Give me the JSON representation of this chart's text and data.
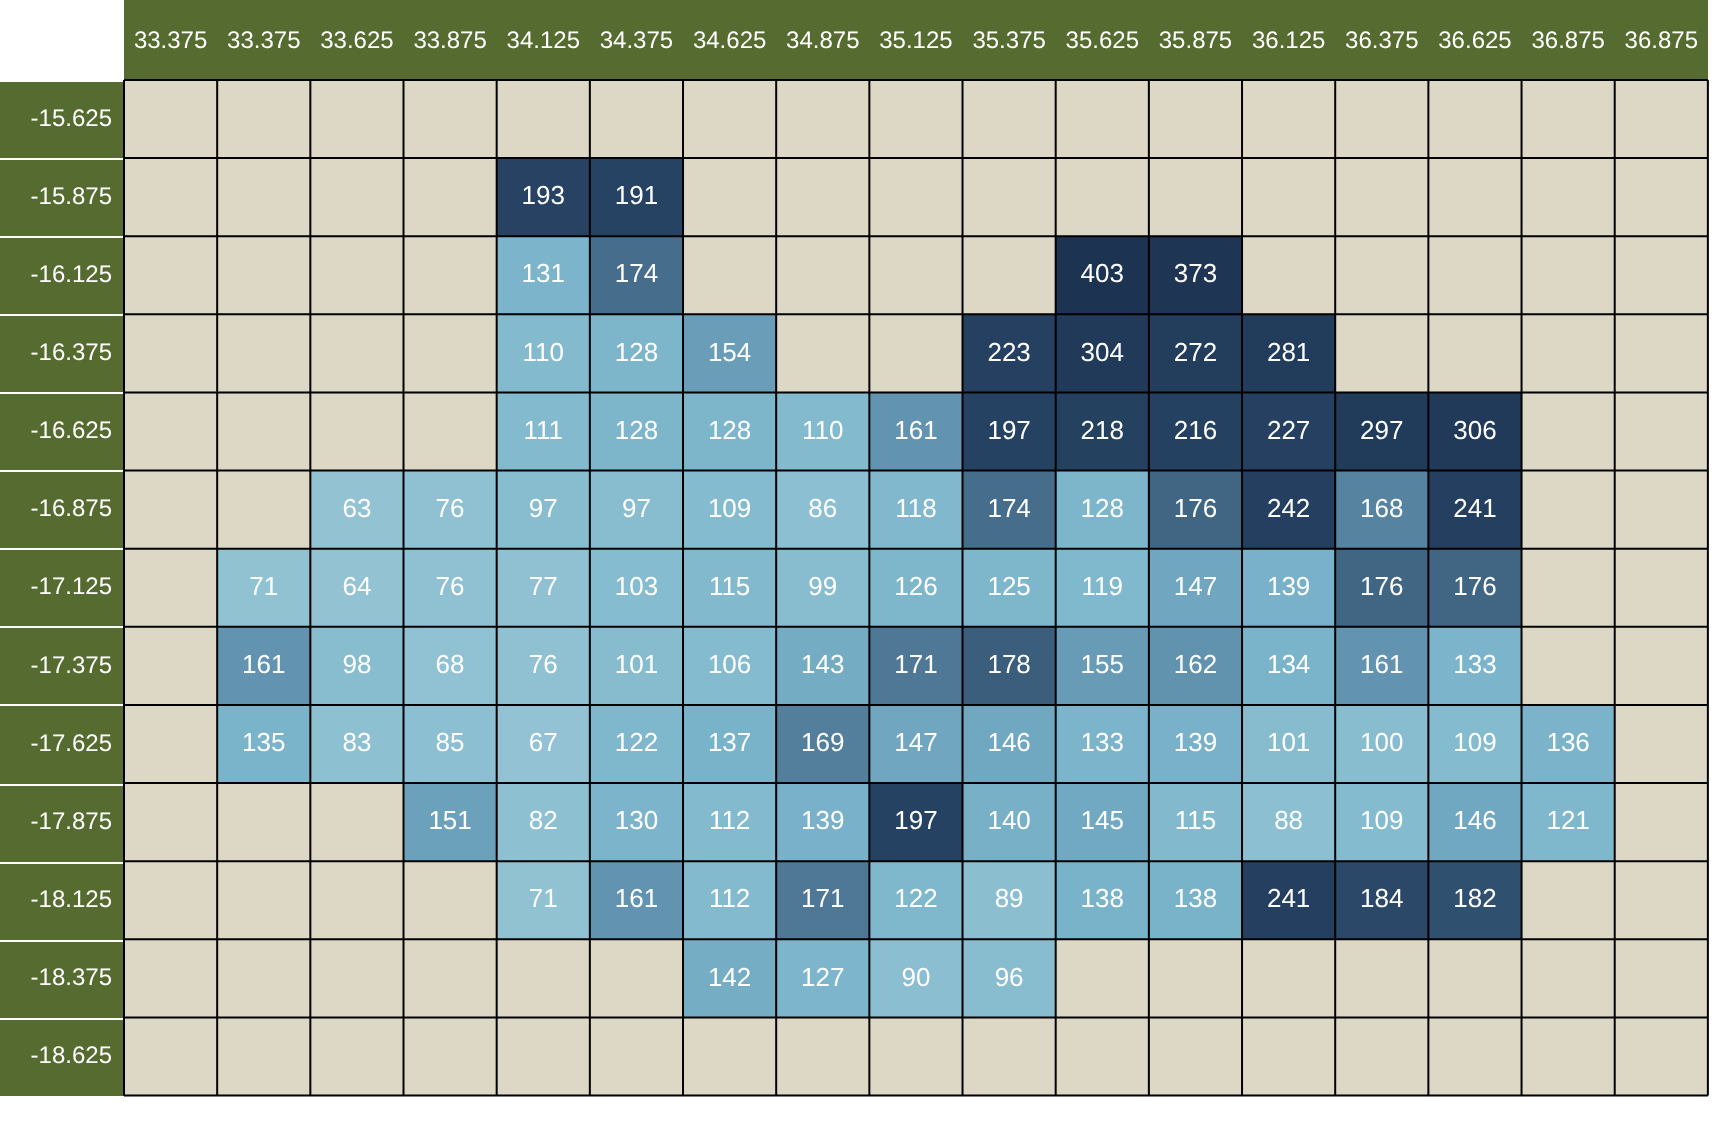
{
  "chart_data": {
    "type": "heatmap",
    "categories": [
      "33.375",
      "33.375",
      "33.625",
      "33.875",
      "34.125",
      "34.375",
      "34.625",
      "34.875",
      "35.125",
      "35.375",
      "35.625",
      "35.875",
      "36.125",
      "36.375",
      "36.625",
      "36.875",
      "36.875"
    ],
    "y_categories": [
      "-15.625",
      "-15.875",
      "-16.125",
      "-16.375",
      "-16.625",
      "-16.875",
      "-17.125",
      "-17.375",
      "-17.625",
      "-17.875",
      "-18.125",
      "-18.375",
      "-18.625"
    ],
    "cells": [
      [
        null,
        null,
        null,
        null,
        null,
        null,
        null,
        null,
        null,
        null,
        null,
        null,
        null,
        null,
        null,
        null,
        null
      ],
      [
        null,
        null,
        null,
        null,
        193,
        191,
        null,
        null,
        null,
        null,
        null,
        null,
        null,
        null,
        null,
        null,
        null
      ],
      [
        null,
        null,
        null,
        null,
        131,
        174,
        null,
        null,
        null,
        null,
        403,
        373,
        null,
        null,
        null,
        null,
        null
      ],
      [
        null,
        null,
        null,
        null,
        110,
        128,
        154,
        null,
        null,
        223,
        304,
        272,
        281,
        null,
        null,
        null,
        null
      ],
      [
        null,
        null,
        null,
        null,
        111,
        128,
        128,
        110,
        161,
        197,
        218,
        216,
        227,
        297,
        306,
        null,
        null
      ],
      [
        null,
        null,
        63,
        76,
        97,
        97,
        109,
        86,
        118,
        174,
        128,
        176,
        242,
        168,
        241,
        null,
        null
      ],
      [
        null,
        71,
        64,
        76,
        77,
        103,
        115,
        99,
        126,
        125,
        119,
        147,
        139,
        176,
        176,
        null,
        null
      ],
      [
        null,
        161,
        98,
        68,
        76,
        101,
        106,
        143,
        171,
        178,
        155,
        162,
        134,
        161,
        133,
        null,
        null
      ],
      [
        null,
        135,
        83,
        85,
        67,
        122,
        137,
        169,
        147,
        146,
        133,
        139,
        101,
        100,
        109,
        136,
        null
      ],
      [
        null,
        null,
        null,
        151,
        82,
        130,
        112,
        139,
        197,
        140,
        145,
        115,
        88,
        109,
        146,
        121,
        null
      ],
      [
        null,
        null,
        null,
        null,
        71,
        161,
        112,
        171,
        122,
        89,
        138,
        138,
        241,
        184,
        182,
        null,
        null
      ],
      [
        null,
        null,
        null,
        null,
        null,
        null,
        142,
        127,
        90,
        96,
        null,
        null,
        null,
        null,
        null,
        null,
        null
      ],
      [
        null,
        null,
        null,
        null,
        null,
        null,
        null,
        null,
        null,
        null,
        null,
        null,
        null,
        null,
        null,
        null,
        null
      ]
    ],
    "data_labels": true
  }
}
